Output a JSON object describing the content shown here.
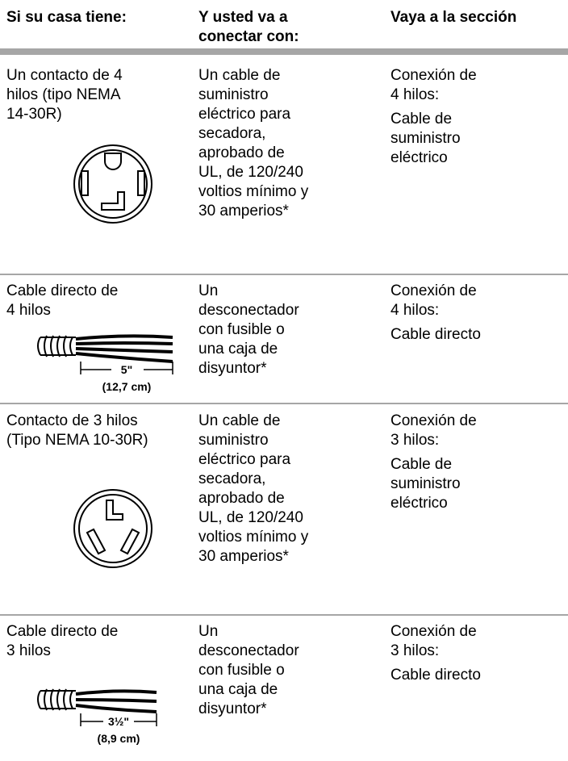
{
  "header": {
    "columns": [
      [
        "Si su casa tiene:"
      ],
      [
        "Y usted va a",
        "conectar con:"
      ],
      [
        "Vaya a la sección"
      ]
    ]
  },
  "rows": [
    {
      "house": [
        "Un contacto de 4",
        "hilos (tipo NEMA",
        "14-30R)"
      ],
      "connect": [
        "Un cable de",
        "suministro",
        "eléctrico para",
        "secadora,",
        "aprobado de",
        "UL, de 120/240",
        "voltios mínimo y",
        "30 amperios*"
      ],
      "section": [
        [
          "Conexión de",
          "4 hilos:"
        ],
        [
          "Cable de",
          "suministro",
          "eléctrico"
        ]
      ]
    },
    {
      "house": [
        "Cable directo de",
        "4 hilos"
      ],
      "figure_labels": [
        "5\"",
        "(12,7 cm)"
      ],
      "connect": [
        "Un",
        "desconectador",
        "con fusible o",
        "una caja de",
        "disyuntor*"
      ],
      "section": [
        [
          "Conexión de",
          "4 hilos:"
        ],
        [
          "Cable directo"
        ]
      ]
    },
    {
      "house": [
        "Contacto de 3 hilos",
        "(Tipo NEMA 10-30R)"
      ],
      "connect": [
        "Un cable de",
        "suministro",
        "eléctrico para",
        "secadora,",
        "aprobado de",
        "UL, de 120/240",
        "voltios mínimo y",
        "30 amperios*"
      ],
      "section": [
        [
          "Conexión de",
          "3 hilos:"
        ],
        [
          "Cable de",
          "suministro",
          "eléctrico"
        ]
      ]
    },
    {
      "house": [
        "Cable directo de",
        "3 hilos"
      ],
      "figure_labels": [
        "3½\"",
        "(8,9 cm)"
      ],
      "connect": [
        "Un",
        "desconectador",
        "con fusible o",
        "una caja de",
        "disyuntor*"
      ],
      "section": [
        [
          "Conexión de",
          "3 hilos:"
        ],
        [
          "Cable directo"
        ]
      ]
    }
  ]
}
